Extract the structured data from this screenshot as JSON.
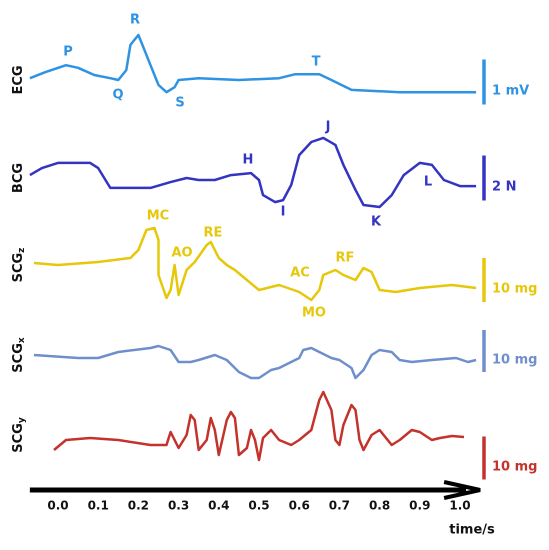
{
  "chart_data": {
    "type": "line",
    "xlabel": "time/s",
    "xlim": [
      -0.07,
      1.05
    ],
    "xticks": [
      {
        "value": 0,
        "label": "0.0"
      },
      0.1,
      0.2,
      0.3,
      0.4,
      0.5,
      0.6,
      0.7,
      0.8,
      0.9,
      {
        "value": 1,
        "label": "1.0"
      }
    ],
    "series": [
      {
        "name": "ECG",
        "color": "#2e93e2",
        "scale": 1,
        "scale_label": "1 mV",
        "peaks": [
          "P",
          "Q",
          "R",
          "S",
          "T"
        ],
        "x": [
          -0.07,
          -0.03,
          0.02,
          0.05,
          0.09,
          0.13,
          0.15,
          0.17,
          0.18,
          0.2,
          0.21,
          0.23,
          0.25,
          0.27,
          0.29,
          0.3,
          0.35,
          0.45,
          0.55,
          0.59,
          0.65,
          0.68,
          0.73,
          0.85,
          1.04
        ],
        "values": [
          0.04,
          0.18,
          0.33,
          0.27,
          0.11,
          0.04,
          0,
          0.22,
          0.78,
          1.0,
          0.78,
          0.33,
          -0.11,
          -0.27,
          -0.16,
          0,
          0.04,
          0,
          0.04,
          0.13,
          0.13,
          0,
          -0.22,
          -0.27,
          -0.27
        ]
      },
      {
        "name": "BCG",
        "color": "#3434c2",
        "scale": 2,
        "scale_label": "2 N",
        "peaks": [
          "H",
          "I",
          "J",
          "K",
          "L"
        ],
        "x": [
          -0.07,
          -0.04,
          0.0,
          0.08,
          0.1,
          0.13,
          0.23,
          0.28,
          0.32,
          0.35,
          0.39,
          0.43,
          0.48,
          0.5,
          0.51,
          0.54,
          0.56,
          0.58,
          0.6,
          0.63,
          0.66,
          0.69,
          0.71,
          0.74,
          0.76,
          0.8,
          0.83,
          0.86,
          0.9,
          0.93,
          0.96,
          1.0,
          1.04
        ],
        "values": [
          0.13,
          0.44,
          0.67,
          0.67,
          0.44,
          -0.44,
          -0.44,
          -0.18,
          0,
          -0.09,
          -0.09,
          0.13,
          0.22,
          -0.09,
          -0.76,
          -1.07,
          -0.98,
          -0.31,
          1.02,
          1.6,
          1.78,
          1.47,
          0.58,
          -0.53,
          -1.2,
          -1.29,
          -0.76,
          0.13,
          0.67,
          0.58,
          -0.09,
          -0.36,
          -0.36
        ]
      },
      {
        "name": "SCG",
        "subscript": "z",
        "color": "#e6c70a",
        "scale": 10,
        "scale_label": "10 mg",
        "peaks": [
          "MC",
          "AO",
          "RE",
          "AC",
          "RF",
          "MO"
        ],
        "x": [
          -0.06,
          0.0,
          0.1,
          0.18,
          0.2,
          0.22,
          0.24,
          0.25,
          0.25,
          0.27,
          0.28,
          0.29,
          0.3,
          0.32,
          0.34,
          0.37,
          0.38,
          0.4,
          0.42,
          0.44,
          0.47,
          0.5,
          0.55,
          0.6,
          0.63,
          0.65,
          0.66,
          0.69,
          0.71,
          0.74,
          0.76,
          0.78,
          0.8,
          0.84,
          0.9,
          0.98,
          1.04
        ],
        "values": [
          0.45,
          0,
          0.68,
          1.59,
          3.41,
          7.95,
          8.41,
          5.68,
          -2.27,
          -7.5,
          -5.68,
          0,
          -6.82,
          -1.14,
          0.68,
          4.55,
          5.23,
          1.59,
          0,
          -1.14,
          -3.41,
          -5.68,
          -4.55,
          -6.14,
          -7.95,
          -5.68,
          -2.27,
          -1.14,
          -2.27,
          -3.41,
          -0.68,
          -1.59,
          -5.68,
          -6.14,
          -5.23,
          -4.55,
          -5.23
        ]
      },
      {
        "name": "SCG",
        "subscript": "x",
        "color": "#6f8fcc",
        "scale": 10,
        "scale_label": "10 mg",
        "x": [
          -0.06,
          0.05,
          0.1,
          0.15,
          0.23,
          0.25,
          0.28,
          0.3,
          0.33,
          0.35,
          0.39,
          0.42,
          0.45,
          0.48,
          0.5,
          0.53,
          0.55,
          0.58,
          0.6,
          0.61,
          0.63,
          0.65,
          0.68,
          0.7,
          0.73,
          0.74,
          0.76,
          0.78,
          0.8,
          0.83,
          0.85,
          0.88,
          0.93,
          0.99,
          1.02,
          1.04
        ],
        "values": [
          0,
          -0.71,
          -0.71,
          0.71,
          1.67,
          2.14,
          1.19,
          -1.67,
          -1.67,
          -1.19,
          0,
          -1.19,
          -4.05,
          -5.48,
          -5.48,
          -3.57,
          -3.1,
          -1.67,
          -0.71,
          1.19,
          1.67,
          0.71,
          -0.71,
          -1.19,
          -3.1,
          -5.48,
          -3.57,
          0,
          1.19,
          0.71,
          -1.19,
          -1.67,
          -1.19,
          -0.71,
          -1.67,
          -1.19
        ]
      },
      {
        "name": "SCG",
        "subscript": "y",
        "color": "#c4322c",
        "scale": 10,
        "scale_label": "10 mg",
        "x": [
          -0.01,
          0.02,
          0.08,
          0.15,
          0.23,
          0.27,
          0.28,
          0.29,
          0.3,
          0.32,
          0.33,
          0.34,
          0.35,
          0.37,
          0.38,
          0.39,
          0.4,
          0.42,
          0.43,
          0.44,
          0.45,
          0.47,
          0.48,
          0.49,
          0.5,
          0.51,
          0.53,
          0.55,
          0.58,
          0.6,
          0.63,
          0.65,
          0.66,
          0.68,
          0.69,
          0.7,
          0.71,
          0.73,
          0.74,
          0.75,
          0.76,
          0.78,
          0.8,
          0.83,
          0.85,
          0.88,
          0.9,
          0.93,
          0.95,
          0.98,
          1.01
        ],
        "values": [
          -3.49,
          -1.16,
          -0.7,
          -1.16,
          -2.33,
          -2.33,
          0.7,
          -1.16,
          -3.02,
          0,
          4.65,
          3.49,
          -3.49,
          -1.16,
          3.95,
          1.16,
          -4.65,
          3.49,
          5.35,
          3.95,
          -4.65,
          -3.02,
          1.16,
          -1.16,
          -5.81,
          -0.7,
          1.16,
          -1.16,
          -2.33,
          -1.16,
          1.16,
          8.14,
          10,
          5.81,
          -1.16,
          -2.33,
          2.33,
          6.98,
          5.81,
          -1.16,
          -3.49,
          0,
          1.16,
          -2.33,
          -1.16,
          1.16,
          0.7,
          -1.16,
          -0.7,
          -0.23,
          -0.47
        ]
      }
    ]
  }
}
